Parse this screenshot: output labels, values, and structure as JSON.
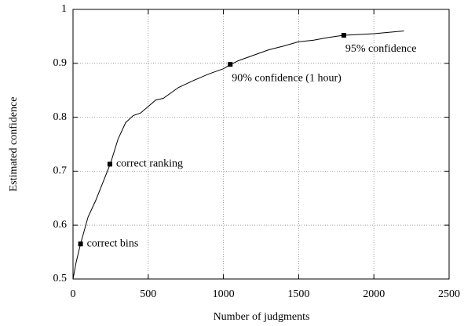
{
  "chart_data": {
    "type": "line",
    "x_label": "Number of judgments",
    "y_label": "Estimated confidence",
    "x": [
      0,
      20,
      50,
      100,
      150,
      200,
      250,
      300,
      350,
      400,
      450,
      500,
      550,
      600,
      700,
      800,
      900,
      1000,
      1050,
      1100,
      1200,
      1300,
      1400,
      1500,
      1600,
      1700,
      1800,
      2000,
      2200
    ],
    "series": [
      {
        "color": "#000000",
        "values": [
          0.5,
          0.53,
          0.565,
          0.615,
          0.645,
          0.68,
          0.715,
          0.76,
          0.79,
          0.803,
          0.808,
          0.82,
          0.832,
          0.835,
          0.855,
          0.868,
          0.88,
          0.89,
          0.898,
          0.905,
          0.915,
          0.925,
          0.932,
          0.94,
          0.943,
          0.948,
          0.952,
          0.955,
          0.96
        ]
      }
    ],
    "annotations": [
      {
        "x": 50,
        "y": 0.565,
        "label": "correct bins"
      },
      {
        "x": 245,
        "y": 0.713,
        "label": "correct ranking"
      },
      {
        "x": 1045,
        "y": 0.898,
        "label": "90% confidence (1 hour)"
      },
      {
        "x": 1800,
        "y": 0.952,
        "label": "95% confidence"
      }
    ],
    "xlim": [
      0,
      2500
    ],
    "xticks": [
      0,
      500,
      1000,
      1500,
      2000,
      2500
    ],
    "ylim": [
      0.5,
      1
    ],
    "yticks": [
      0.5,
      0.6,
      0.7,
      0.8,
      0.9,
      1
    ],
    "grid": true
  }
}
